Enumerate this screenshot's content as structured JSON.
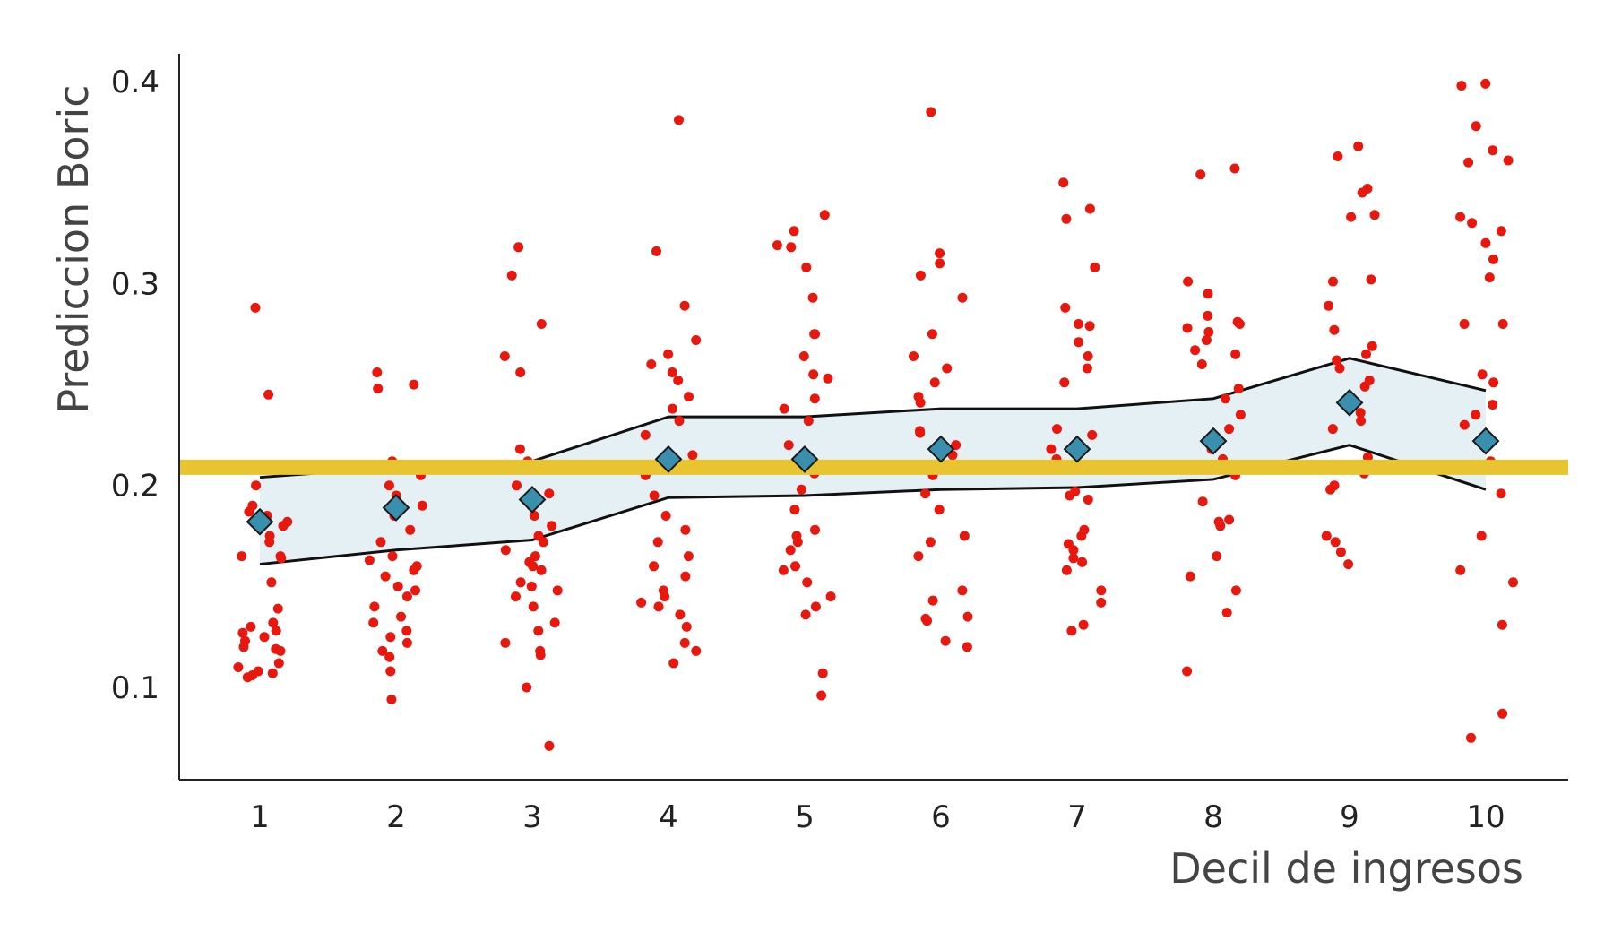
{
  "chart_data": {
    "type": "scatter",
    "title": "",
    "xlabel": "Decil de ingresos",
    "ylabel": "Prediccion Boric",
    "categories": [
      "1",
      "2",
      "3",
      "4",
      "5",
      "6",
      "7",
      "8",
      "9",
      "10"
    ],
    "y_ticks": [
      "0.1",
      "0.2",
      "0.3",
      "0.4"
    ],
    "ylim": [
      0.05,
      0.41
    ],
    "grid": false,
    "legend": "none",
    "reference_line": {
      "y": 0.209,
      "color": "#e8c530"
    },
    "means": [
      0.182,
      0.189,
      0.193,
      0.213,
      0.213,
      0.218,
      0.218,
      0.222,
      0.241,
      0.222
    ],
    "ci_upper": [
      0.204,
      0.209,
      0.212,
      0.234,
      0.234,
      0.238,
      0.238,
      0.243,
      0.263,
      0.247
    ],
    "ci_lower": [
      0.161,
      0.168,
      0.173,
      0.194,
      0.195,
      0.198,
      0.199,
      0.203,
      0.22,
      0.198
    ],
    "points": [
      [
        0.245,
        0.187,
        0.185,
        0.182,
        0.175,
        0.172,
        0.165,
        0.164,
        0.152,
        0.139,
        0.132,
        0.13,
        0.128,
        0.127,
        0.125,
        0.123,
        0.12,
        0.119,
        0.118,
        0.112,
        0.11,
        0.108,
        0.107,
        0.106,
        0.105,
        0.19,
        0.18,
        0.165,
        0.288,
        0.2
      ],
      [
        0.25,
        0.248,
        0.256,
        0.21,
        0.2,
        0.195,
        0.19,
        0.185,
        0.178,
        0.172,
        0.165,
        0.16,
        0.158,
        0.155,
        0.15,
        0.148,
        0.145,
        0.14,
        0.135,
        0.132,
        0.128,
        0.125,
        0.122,
        0.118,
        0.115,
        0.108,
        0.094,
        0.205,
        0.212,
        0.163
      ],
      [
        0.318,
        0.304,
        0.28,
        0.264,
        0.256,
        0.218,
        0.212,
        0.2,
        0.196,
        0.19,
        0.185,
        0.18,
        0.175,
        0.172,
        0.168,
        0.165,
        0.162,
        0.16,
        0.158,
        0.152,
        0.15,
        0.148,
        0.145,
        0.14,
        0.132,
        0.128,
        0.122,
        0.118,
        0.116,
        0.1,
        0.071
      ],
      [
        0.381,
        0.316,
        0.289,
        0.272,
        0.265,
        0.26,
        0.256,
        0.252,
        0.244,
        0.238,
        0.232,
        0.225,
        0.215,
        0.205,
        0.195,
        0.185,
        0.178,
        0.172,
        0.165,
        0.16,
        0.155,
        0.148,
        0.145,
        0.142,
        0.14,
        0.136,
        0.13,
        0.122,
        0.118,
        0.112
      ],
      [
        0.334,
        0.326,
        0.319,
        0.318,
        0.308,
        0.293,
        0.275,
        0.275,
        0.264,
        0.255,
        0.253,
        0.243,
        0.238,
        0.232,
        0.22,
        0.206,
        0.198,
        0.188,
        0.178,
        0.175,
        0.172,
        0.168,
        0.16,
        0.158,
        0.152,
        0.145,
        0.14,
        0.136,
        0.107,
        0.096
      ],
      [
        0.385,
        0.315,
        0.31,
        0.304,
        0.293,
        0.275,
        0.264,
        0.258,
        0.251,
        0.244,
        0.241,
        0.227,
        0.226,
        0.22,
        0.215,
        0.21,
        0.205,
        0.196,
        0.188,
        0.175,
        0.172,
        0.165,
        0.148,
        0.143,
        0.135,
        0.134,
        0.133,
        0.123,
        0.12
      ],
      [
        0.35,
        0.337,
        0.332,
        0.308,
        0.288,
        0.28,
        0.279,
        0.271,
        0.264,
        0.258,
        0.251,
        0.228,
        0.225,
        0.218,
        0.213,
        0.208,
        0.197,
        0.195,
        0.193,
        0.178,
        0.175,
        0.171,
        0.168,
        0.164,
        0.162,
        0.158,
        0.148,
        0.142,
        0.131,
        0.128
      ],
      [
        0.357,
        0.354,
        0.301,
        0.295,
        0.284,
        0.281,
        0.28,
        0.278,
        0.276,
        0.272,
        0.267,
        0.265,
        0.26,
        0.248,
        0.243,
        0.235,
        0.228,
        0.218,
        0.213,
        0.205,
        0.192,
        0.183,
        0.182,
        0.18,
        0.165,
        0.155,
        0.148,
        0.137,
        0.108
      ],
      [
        0.368,
        0.363,
        0.347,
        0.345,
        0.334,
        0.333,
        0.302,
        0.301,
        0.289,
        0.277,
        0.269,
        0.265,
        0.262,
        0.258,
        0.252,
        0.249,
        0.236,
        0.232,
        0.228,
        0.214,
        0.21,
        0.206,
        0.2,
        0.198,
        0.175,
        0.172,
        0.167,
        0.161
      ],
      [
        0.399,
        0.398,
        0.378,
        0.366,
        0.361,
        0.36,
        0.333,
        0.33,
        0.326,
        0.32,
        0.312,
        0.303,
        0.28,
        0.28,
        0.255,
        0.251,
        0.24,
        0.235,
        0.23,
        0.212,
        0.208,
        0.196,
        0.175,
        0.158,
        0.152,
        0.131,
        0.087,
        0.075
      ]
    ],
    "colors": {
      "points": "#e8180e",
      "ci_fill": "#e5f0f5",
      "ci_line": "#111111",
      "mean_marker": "#3a8fae",
      "axis": "#222222"
    }
  }
}
